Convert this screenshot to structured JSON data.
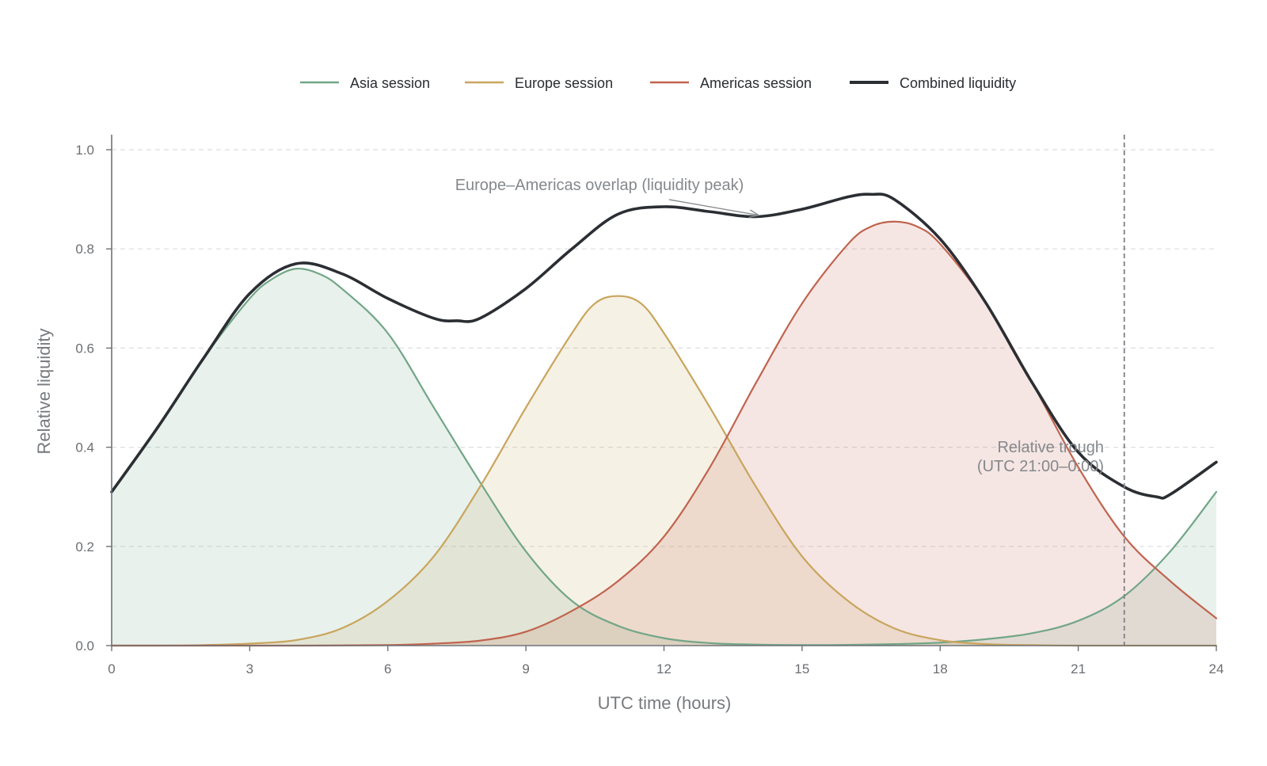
{
  "chart_data": {
    "type": "area",
    "xlabel": "UTC time (hours)",
    "ylabel": "Relative liquidity",
    "xlim": [
      0,
      24
    ],
    "ylim": [
      0,
      1.0
    ],
    "xticks": [
      0,
      3,
      6,
      9,
      12,
      15,
      18,
      21,
      24
    ],
    "yticks": [
      0.0,
      0.2,
      0.4,
      0.6,
      0.8,
      1.0
    ],
    "grid": "horizontal-dashed",
    "legend_position": "top-center",
    "series": [
      {
        "name": "Asia session",
        "color": "#72a687",
        "fill": true,
        "x": [
          0,
          1,
          2,
          3,
          3.5,
          4,
          4.5,
          5,
          6,
          7,
          8,
          9,
          10,
          11,
          12,
          13,
          14,
          15,
          16,
          17,
          18,
          19,
          20,
          21,
          22,
          23,
          24
        ],
        "y": [
          0.31,
          0.44,
          0.58,
          0.7,
          0.74,
          0.76,
          0.75,
          0.72,
          0.63,
          0.48,
          0.33,
          0.19,
          0.09,
          0.04,
          0.015,
          0.005,
          0.002,
          0.001,
          0.0015,
          0.003,
          0.006,
          0.013,
          0.025,
          0.05,
          0.1,
          0.19,
          0.31
        ]
      },
      {
        "name": "Europe session",
        "color": "#c9a55e",
        "fill": true,
        "x": [
          0,
          1,
          2,
          3,
          4,
          5,
          6,
          7,
          8,
          9,
          10,
          10.5,
          11,
          11.5,
          12,
          13,
          14,
          15,
          16,
          17,
          18,
          19,
          20,
          21,
          22,
          23,
          24
        ],
        "y": [
          0.0,
          0.0,
          0.001,
          0.004,
          0.011,
          0.035,
          0.09,
          0.18,
          0.32,
          0.48,
          0.63,
          0.69,
          0.705,
          0.69,
          0.63,
          0.48,
          0.32,
          0.18,
          0.09,
          0.035,
          0.011,
          0.003,
          0.001,
          0.0,
          0.0,
          0.0,
          0.0
        ]
      },
      {
        "name": "Americas session",
        "color": "#c0644f",
        "fill": true,
        "x": [
          0,
          2,
          4,
          6,
          7,
          8,
          9,
          10,
          11,
          12,
          13,
          14,
          15,
          16,
          16.5,
          17,
          17.5,
          18,
          19,
          20,
          21,
          22,
          23,
          24
        ],
        "y": [
          0.0,
          0.0,
          0.0,
          0.001,
          0.004,
          0.01,
          0.028,
          0.07,
          0.13,
          0.22,
          0.36,
          0.53,
          0.69,
          0.81,
          0.845,
          0.855,
          0.845,
          0.81,
          0.69,
          0.53,
          0.36,
          0.22,
          0.13,
          0.055
        ]
      },
      {
        "name": "Combined liquidity",
        "color": "#2b2e33",
        "fill": false,
        "x": [
          0,
          1,
          2,
          3,
          4,
          5,
          6,
          7,
          7.5,
          8,
          9,
          10,
          11,
          12,
          13,
          14,
          15,
          16,
          16.5,
          17,
          18,
          19,
          20,
          21,
          22,
          22.7,
          23,
          24
        ],
        "y": [
          0.31,
          0.44,
          0.58,
          0.71,
          0.77,
          0.75,
          0.7,
          0.66,
          0.655,
          0.66,
          0.72,
          0.8,
          0.87,
          0.885,
          0.875,
          0.865,
          0.88,
          0.905,
          0.91,
          0.9,
          0.82,
          0.69,
          0.53,
          0.39,
          0.32,
          0.3,
          0.305,
          0.37
        ]
      }
    ],
    "reference_lines": [
      {
        "axis": "x",
        "value": 22,
        "style": "dashed",
        "color": "#7d8085"
      }
    ],
    "annotations": [
      {
        "text": "Europe–Americas overlap (liquidity peak)",
        "arrow_to": [
          13.9,
          0.868
        ]
      },
      {
        "text_lines": [
          "Relative trough",
          "(UTC 21:00–0:00)"
        ]
      }
    ]
  }
}
